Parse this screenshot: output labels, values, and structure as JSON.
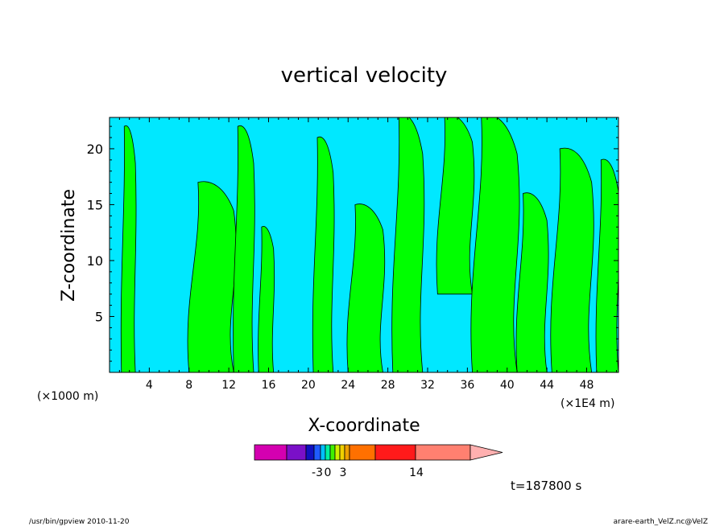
{
  "chart_data": {
    "type": "heatmap",
    "title": "vertical velocity",
    "xlabel": "X-coordinate",
    "ylabel": "Z-coordinate",
    "x_unit_left": "(×1000 m)",
    "x_unit_right": "(×1E4 m)",
    "x_ticks": [
      4,
      8,
      12,
      16,
      20,
      24,
      28,
      32,
      36,
      40,
      44,
      48
    ],
    "y_ticks": [
      5,
      10,
      15,
      20
    ],
    "xlim": [
      0,
      51.2
    ],
    "ylim": [
      0,
      22.8
    ],
    "colorbar": {
      "colors": [
        "#d400b0",
        "#7a10c8",
        "#1010c0",
        "#1f5bff",
        "#00bfff",
        "#00f0a0",
        "#40f000",
        "#d0f000",
        "#f0d000",
        "#f0a000",
        "#ff7000",
        "#ff1a1a",
        "#ff8070",
        "#ffb0b0"
      ],
      "tick_labels": [
        "-3",
        "0",
        "3",
        "14"
      ]
    },
    "time_label": "t=187800 s",
    "green_bands": [
      {
        "x": [
          1.2,
          2.6
        ],
        "z": [
          0,
          22
        ]
      },
      {
        "x": [
          8.0,
          12.5
        ],
        "z": [
          0,
          17
        ]
      },
      {
        "x": [
          12.5,
          14.5
        ],
        "z": [
          0,
          22
        ]
      },
      {
        "x": [
          15.0,
          16.5
        ],
        "z": [
          0,
          13
        ]
      },
      {
        "x": [
          20.5,
          22.5
        ],
        "z": [
          0,
          21
        ]
      },
      {
        "x": [
          24.0,
          27.5
        ],
        "z": [
          0,
          15
        ]
      },
      {
        "x": [
          28.5,
          31.5
        ],
        "z": [
          0,
          23
        ]
      },
      {
        "x": [
          33.0,
          36.5
        ],
        "z": [
          7,
          23
        ]
      },
      {
        "x": [
          36.5,
          41.0
        ],
        "z": [
          0,
          23
        ]
      },
      {
        "x": [
          41.0,
          44.0
        ],
        "z": [
          0,
          16
        ]
      },
      {
        "x": [
          44.5,
          48.5
        ],
        "z": [
          0,
          20
        ]
      },
      {
        "x": [
          49.0,
          51.2
        ],
        "z": [
          0,
          19
        ]
      }
    ]
  },
  "footer": {
    "left": "/usr/bin/gpview  2010-11-20",
    "right": "arare-earth_VelZ.nc@VelZ"
  }
}
